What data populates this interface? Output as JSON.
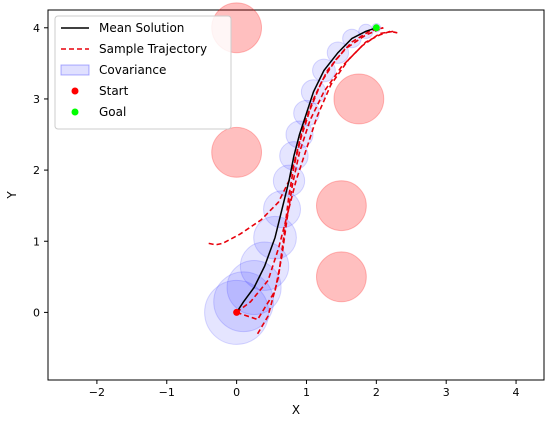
{
  "chart_data": {
    "type": "line",
    "title": "",
    "xlabel": "X",
    "ylabel": "Y",
    "xlim": [
      -2.7,
      4.4
    ],
    "ylim": [
      -0.95,
      4.25
    ],
    "xticks": [
      -2,
      -1,
      0,
      1,
      2,
      3,
      4
    ],
    "yticks": [
      0,
      1,
      2,
      3,
      4
    ],
    "grid": false,
    "legend_position": "top-left",
    "legend": [
      {
        "label": "Mean Solution",
        "kind": "line",
        "color": "#000000"
      },
      {
        "label": "Sample Trajectory",
        "kind": "dashed",
        "color": "#e8000b"
      },
      {
        "label": "Covariance",
        "kind": "patch",
        "color": "#0000ff"
      },
      {
        "label": "Start",
        "kind": "marker",
        "color": "#ff0000"
      },
      {
        "label": "Goal",
        "kind": "marker",
        "color": "#00ff00"
      }
    ],
    "obstacles": [
      {
        "x": 0.0,
        "y": 4.0,
        "r": 0.35
      },
      {
        "x": 1.75,
        "y": 3.0,
        "r": 0.35
      },
      {
        "x": 0.0,
        "y": 2.25,
        "r": 0.35
      },
      {
        "x": 1.5,
        "y": 1.5,
        "r": 0.35
      },
      {
        "x": 1.5,
        "y": 0.5,
        "r": 0.35
      }
    ],
    "start": {
      "x": 0.0,
      "y": 0.0
    },
    "goal": {
      "x": 2.0,
      "y": 4.0
    },
    "mean_solution": {
      "x": [
        0.0,
        0.1,
        0.25,
        0.4,
        0.55,
        0.65,
        0.75,
        0.82,
        0.9,
        1.0,
        1.1,
        1.25,
        1.45,
        1.65,
        1.85,
        2.0
      ],
      "y": [
        0.0,
        0.15,
        0.35,
        0.65,
        1.05,
        1.45,
        1.85,
        2.2,
        2.5,
        2.8,
        3.1,
        3.4,
        3.65,
        3.85,
        3.95,
        4.0
      ]
    },
    "covariance": [
      {
        "x": 0.0,
        "y": 0.0,
        "r": 0.45
      },
      {
        "x": 0.1,
        "y": 0.15,
        "r": 0.42
      },
      {
        "x": 0.25,
        "y": 0.35,
        "r": 0.38
      },
      {
        "x": 0.4,
        "y": 0.65,
        "r": 0.34
      },
      {
        "x": 0.55,
        "y": 1.05,
        "r": 0.3
      },
      {
        "x": 0.65,
        "y": 1.45,
        "r": 0.26
      },
      {
        "x": 0.75,
        "y": 1.85,
        "r": 0.22
      },
      {
        "x": 0.82,
        "y": 2.2,
        "r": 0.2
      },
      {
        "x": 0.9,
        "y": 2.5,
        "r": 0.19
      },
      {
        "x": 1.0,
        "y": 2.8,
        "r": 0.18
      },
      {
        "x": 1.1,
        "y": 3.1,
        "r": 0.17
      },
      {
        "x": 1.25,
        "y": 3.4,
        "r": 0.16
      },
      {
        "x": 1.45,
        "y": 3.65,
        "r": 0.15
      },
      {
        "x": 1.65,
        "y": 3.85,
        "r": 0.13
      },
      {
        "x": 1.85,
        "y": 3.95,
        "r": 0.1
      },
      {
        "x": 2.0,
        "y": 4.0,
        "r": 0.06
      }
    ],
    "sample_trajectories": [
      {
        "x": [
          0.0,
          0.2,
          0.45,
          0.6,
          0.72,
          0.85,
          1.0,
          1.15,
          1.35,
          1.6,
          1.85,
          2.05,
          2.2,
          2.3
        ],
        "y": [
          0.0,
          0.15,
          0.45,
          0.9,
          1.35,
          1.85,
          2.3,
          2.75,
          3.2,
          3.55,
          3.8,
          3.9,
          3.95,
          3.93
        ]
      },
      {
        "x": [
          0.0,
          0.3,
          0.55,
          0.65,
          0.72,
          0.8,
          0.9,
          1.05,
          1.25,
          1.5,
          1.8,
          2.05,
          2.25
        ],
        "y": [
          0.0,
          -0.1,
          0.3,
          0.8,
          1.3,
          1.8,
          2.25,
          2.7,
          3.1,
          3.45,
          3.75,
          3.92,
          3.95
        ]
      },
      {
        "x": [
          0.3,
          0.45,
          0.6,
          0.68,
          0.75,
          0.82,
          0.92,
          1.05,
          1.22,
          1.42,
          1.65,
          1.9,
          2.1
        ],
        "y": [
          -0.3,
          -0.05,
          0.5,
          1.1,
          1.65,
          2.05,
          2.45,
          2.85,
          3.25,
          3.55,
          3.8,
          3.95,
          4.0
        ]
      },
      {
        "x": [
          -0.4,
          -0.3,
          -0.2,
          0.05,
          0.35,
          0.6,
          0.75,
          0.85,
          0.95,
          1.1,
          1.3,
          1.55,
          1.85,
          2.1
        ],
        "y": [
          0.97,
          0.95,
          0.97,
          1.1,
          1.3,
          1.55,
          1.85,
          2.2,
          2.6,
          3.0,
          3.4,
          3.7,
          3.9,
          4.0
        ]
      }
    ]
  }
}
